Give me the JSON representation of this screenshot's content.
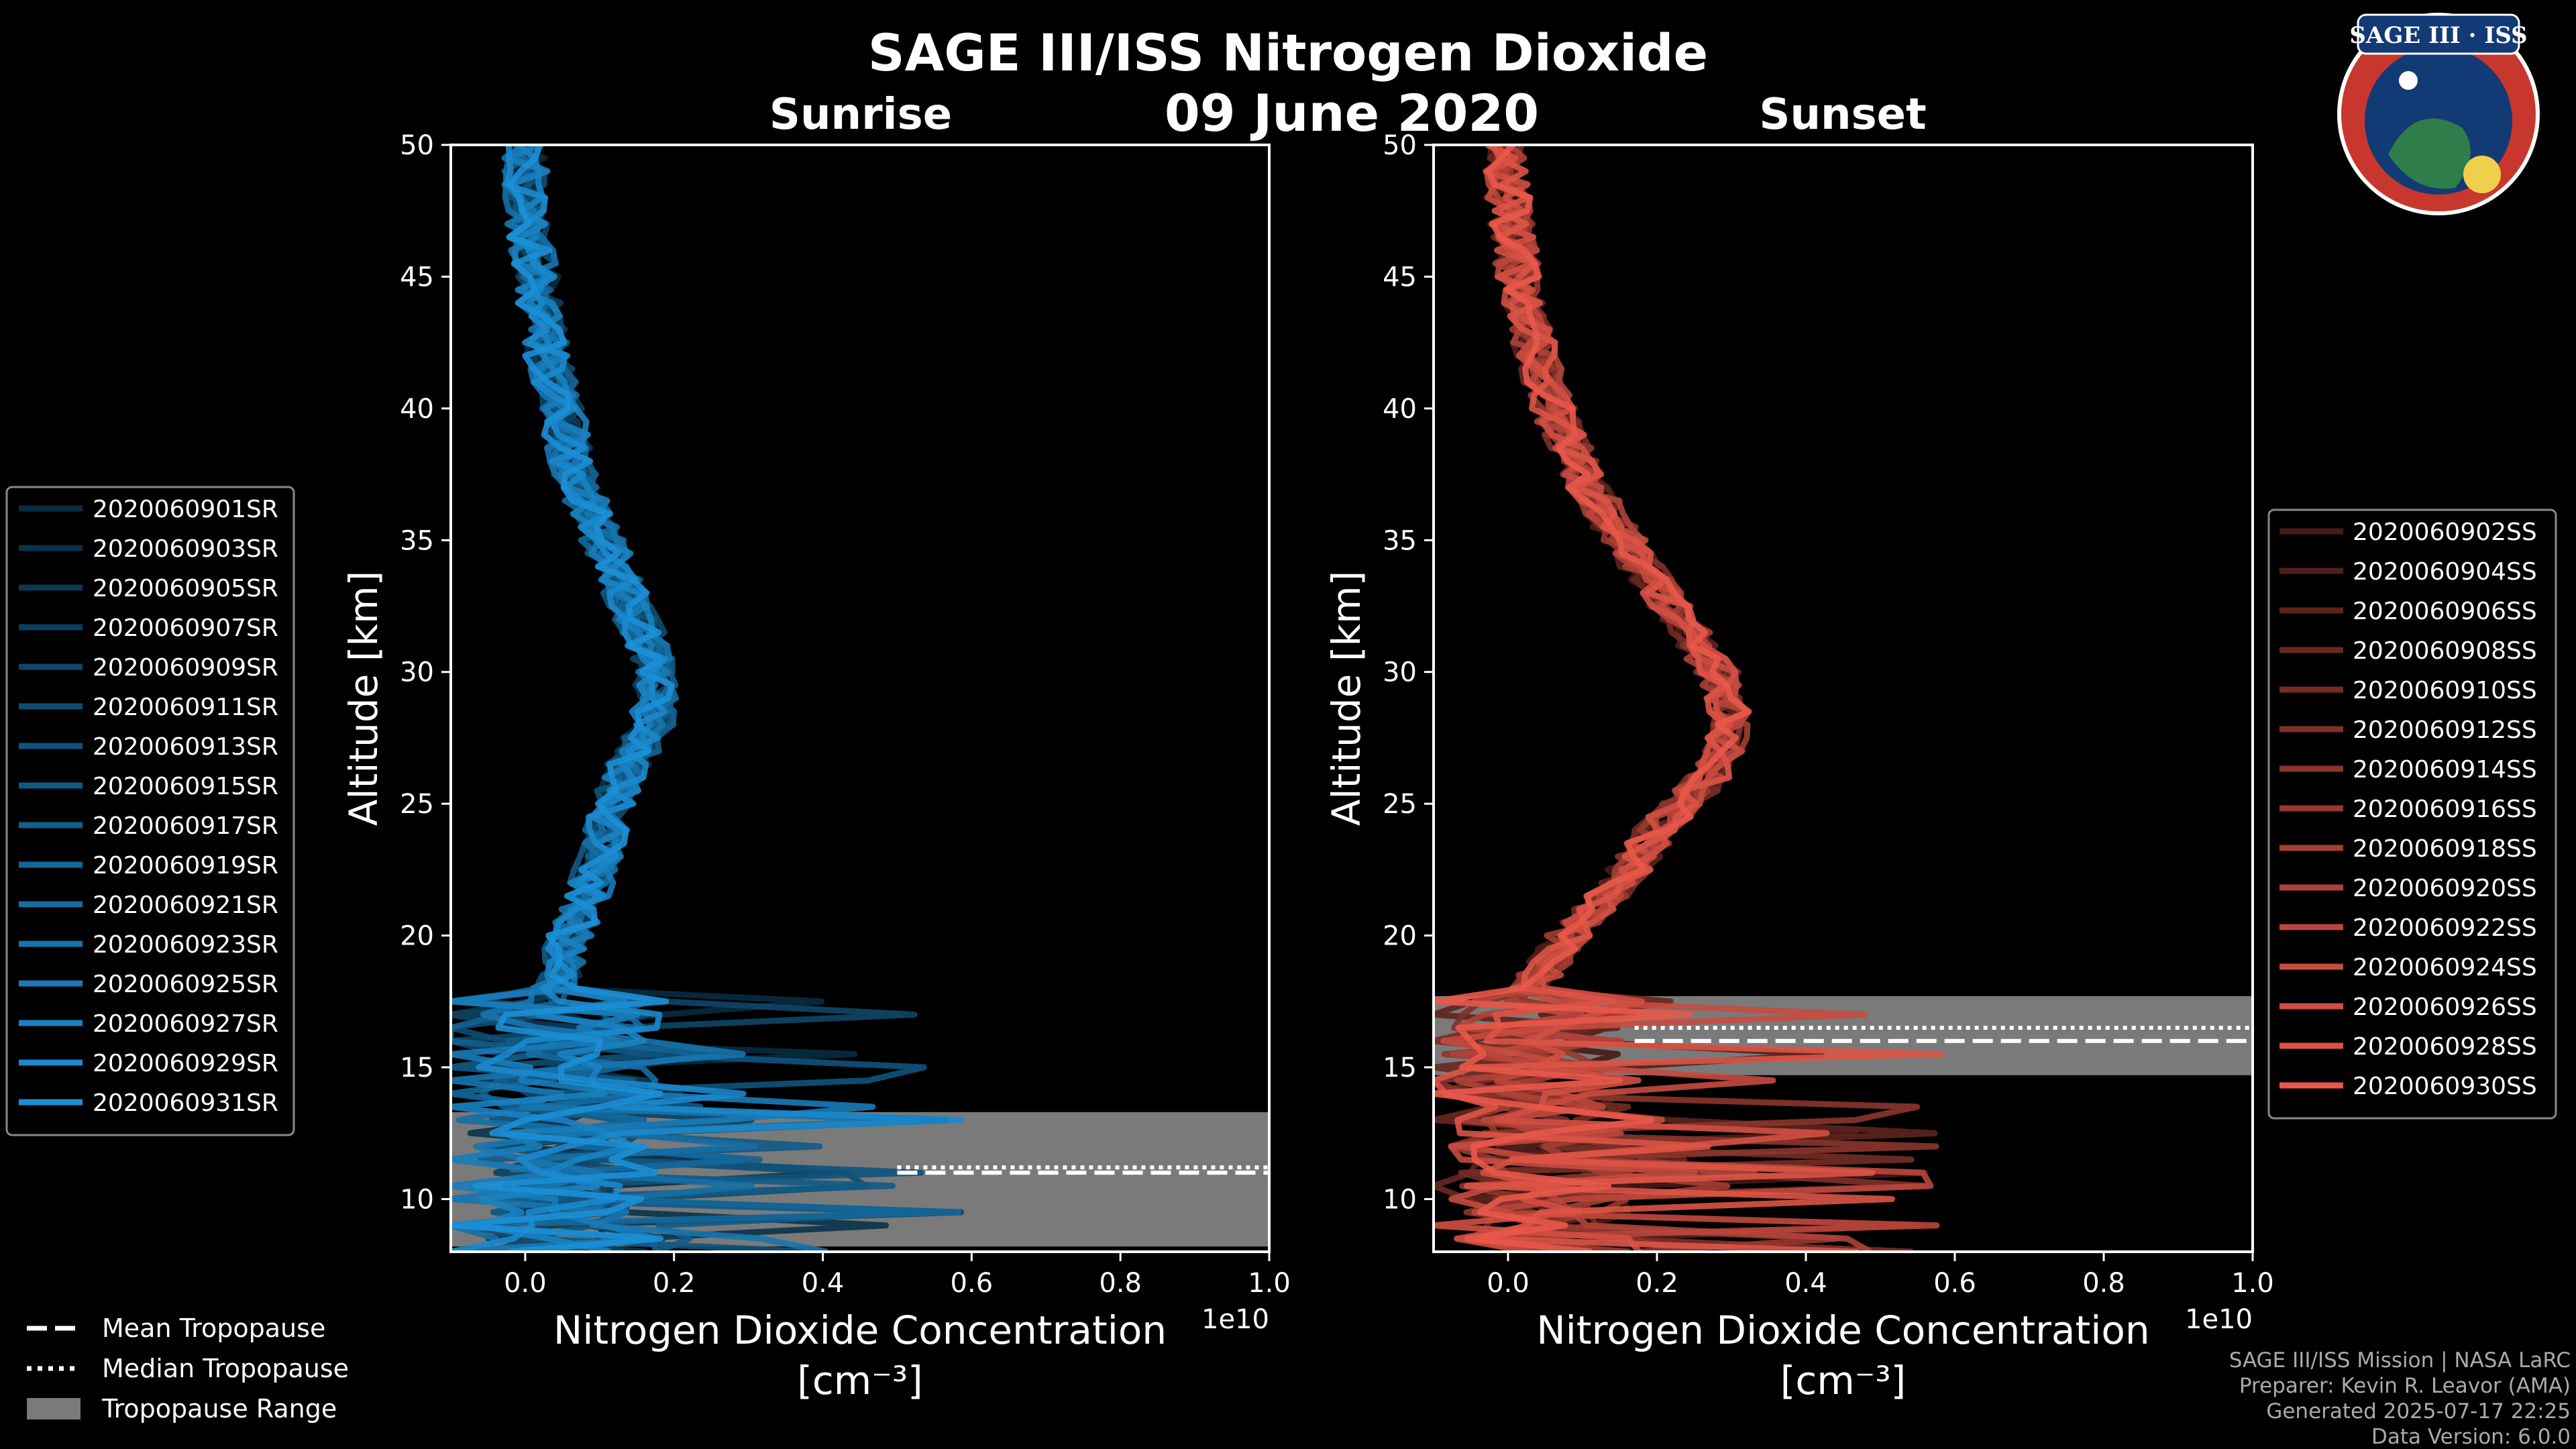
{
  "figure": {
    "title": "SAGE III/ISS Nitrogen Dioxide",
    "date": "09 June 2020"
  },
  "logo": {
    "text": "SAGE III · ISS",
    "colors": {
      "ring": "#c8372d",
      "inner": "#123a75",
      "accent": "#f0d04a"
    }
  },
  "footer": {
    "lines": [
      "SAGE III/ISS Mission | NASA LaRC",
      "Preparer: Kevin R. Leavor (AMA)",
      "Generated 2025-07-17 22:25",
      "Data Version: 6.0.0"
    ]
  },
  "bottom_legend": [
    {
      "label": "Mean Tropopause",
      "style": "dashed"
    },
    {
      "label": "Median Tropopause",
      "style": "dotted"
    },
    {
      "label": "Tropopause Range",
      "style": "patch"
    }
  ],
  "chart_data": [
    {
      "type": "line",
      "title": "Sunrise",
      "xlabel": "Nitrogen Dioxide Concentration",
      "xlabel_unit": "[cm⁻³]",
      "ylabel": "Altitude [km]",
      "x_offset_label": "1e10",
      "xlim": [
        -0.1,
        1.0
      ],
      "ylim": [
        8,
        50
      ],
      "xticks": [
        0.0,
        0.2,
        0.4,
        0.6,
        0.8,
        1.0
      ],
      "xtick_labels": [
        "0.0",
        "0.2",
        "0.4",
        "0.6",
        "0.8",
        "1.0"
      ],
      "yticks": [
        10,
        15,
        20,
        25,
        30,
        35,
        40,
        45,
        50
      ],
      "legend_position": "left",
      "color_base": "#1c8fd6",
      "tropopause": {
        "mean": 11.0,
        "median": 11.2,
        "range": [
          8.2,
          13.3
        ]
      },
      "profile_shape": {
        "alt": [
          8,
          10,
          12,
          14,
          16,
          18,
          20,
          22,
          24,
          26,
          28,
          30,
          32,
          34,
          36,
          38,
          40,
          42,
          44,
          46,
          48,
          50
        ],
        "x": [
          0.03,
          0.02,
          0.01,
          0.02,
          0.02,
          0.04,
          0.06,
          0.09,
          0.11,
          0.13,
          0.17,
          0.18,
          0.15,
          0.12,
          0.09,
          0.06,
          0.05,
          0.03,
          0.02,
          0.01,
          0.0,
          0.0
        ]
      },
      "series": [
        {
          "name": "2020060901SR"
        },
        {
          "name": "2020060903SR"
        },
        {
          "name": "2020060905SR"
        },
        {
          "name": "2020060907SR"
        },
        {
          "name": "2020060909SR"
        },
        {
          "name": "2020060911SR"
        },
        {
          "name": "2020060913SR"
        },
        {
          "name": "2020060915SR"
        },
        {
          "name": "2020060917SR"
        },
        {
          "name": "2020060919SR"
        },
        {
          "name": "2020060921SR"
        },
        {
          "name": "2020060923SR"
        },
        {
          "name": "2020060925SR"
        },
        {
          "name": "2020060927SR"
        },
        {
          "name": "2020060929SR"
        },
        {
          "name": "2020060931SR"
        }
      ]
    },
    {
      "type": "line",
      "title": "Sunset",
      "xlabel": "Nitrogen Dioxide Concentration",
      "xlabel_unit": "[cm⁻³]",
      "ylabel": "Altitude [km]",
      "x_offset_label": "1e10",
      "xlim": [
        -0.1,
        1.0
      ],
      "ylim": [
        8,
        50
      ],
      "xticks": [
        0.0,
        0.2,
        0.4,
        0.6,
        0.8,
        1.0
      ],
      "xtick_labels": [
        "0.0",
        "0.2",
        "0.4",
        "0.6",
        "0.8",
        "1.0"
      ],
      "yticks": [
        10,
        15,
        20,
        25,
        30,
        35,
        40,
        45,
        50
      ],
      "legend_position": "right",
      "color_base": "#e8584a",
      "tropopause": {
        "mean": 16.0,
        "median": 16.5,
        "range": [
          14.7,
          17.7
        ]
      },
      "profile_shape": {
        "alt": [
          8,
          10,
          12,
          14,
          16,
          18,
          20,
          22,
          24,
          26,
          28,
          30,
          32,
          34,
          36,
          38,
          40,
          42,
          44,
          46,
          48,
          50
        ],
        "x": [
          0.02,
          0.01,
          0.01,
          0.0,
          0.0,
          0.03,
          0.08,
          0.15,
          0.2,
          0.27,
          0.3,
          0.28,
          0.23,
          0.18,
          0.13,
          0.09,
          0.06,
          0.04,
          0.02,
          0.01,
          0.0,
          0.0
        ]
      },
      "series": [
        {
          "name": "2020060902SS"
        },
        {
          "name": "2020060904SS"
        },
        {
          "name": "2020060906SS"
        },
        {
          "name": "2020060908SS"
        },
        {
          "name": "2020060910SS"
        },
        {
          "name": "2020060912SS"
        },
        {
          "name": "2020060914SS"
        },
        {
          "name": "2020060916SS"
        },
        {
          "name": "2020060918SS"
        },
        {
          "name": "2020060920SS"
        },
        {
          "name": "2020060922SS"
        },
        {
          "name": "2020060924SS"
        },
        {
          "name": "2020060926SS"
        },
        {
          "name": "2020060928SS"
        },
        {
          "name": "2020060930SS"
        }
      ]
    }
  ]
}
